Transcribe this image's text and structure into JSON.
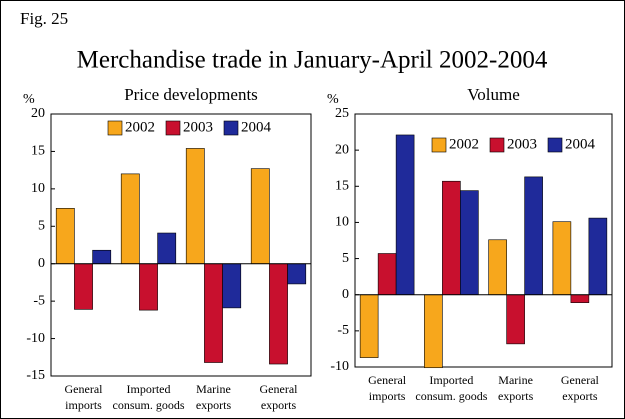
{
  "figure_label": "Fig. 25",
  "title": "Merchandise trade in January-April 2002-2004",
  "chart_data": [
    {
      "type": "bar",
      "title": "Price developments",
      "ylabel": "%",
      "categories": [
        [
          "General",
          "imports"
        ],
        [
          "Imported",
          "consum. goods"
        ],
        [
          "Marine",
          "exports"
        ],
        [
          "General",
          "exports"
        ]
      ],
      "series": [
        {
          "name": "2002",
          "color": "#f7a71c",
          "values": [
            7.4,
            12.0,
            15.4,
            12.7
          ]
        },
        {
          "name": "2003",
          "color": "#c8102e",
          "values": [
            -6.1,
            -6.2,
            -13.2,
            -13.4
          ]
        },
        {
          "name": "2004",
          "color": "#1f2a9a",
          "values": [
            1.8,
            4.1,
            -5.9,
            -2.7
          ]
        }
      ],
      "ylim": [
        -15,
        20
      ],
      "yticks": [
        -15,
        -10,
        -5,
        0,
        5,
        10,
        15,
        20
      ],
      "legend": "top",
      "grid": false
    },
    {
      "type": "bar",
      "title": "Volume",
      "ylabel": "%",
      "categories": [
        [
          "General",
          "imports"
        ],
        [
          "Imported",
          "consum. goods"
        ],
        [
          "Marine",
          "exports"
        ],
        [
          "General",
          "exports"
        ]
      ],
      "series": [
        {
          "name": "2002",
          "color": "#f7a71c",
          "values": [
            -8.7,
            -10.1,
            7.6,
            10.1
          ]
        },
        {
          "name": "2003",
          "color": "#c8102e",
          "values": [
            5.7,
            15.7,
            -6.8,
            -1.1
          ]
        },
        {
          "name": "2004",
          "color": "#1f2a9a",
          "values": [
            22.1,
            14.4,
            16.3,
            10.6
          ]
        }
      ],
      "ylim": [
        -10,
        25
      ],
      "yticks": [
        -10,
        -5,
        0,
        5,
        10,
        15,
        20,
        25
      ],
      "legend": "top",
      "grid": false
    }
  ]
}
